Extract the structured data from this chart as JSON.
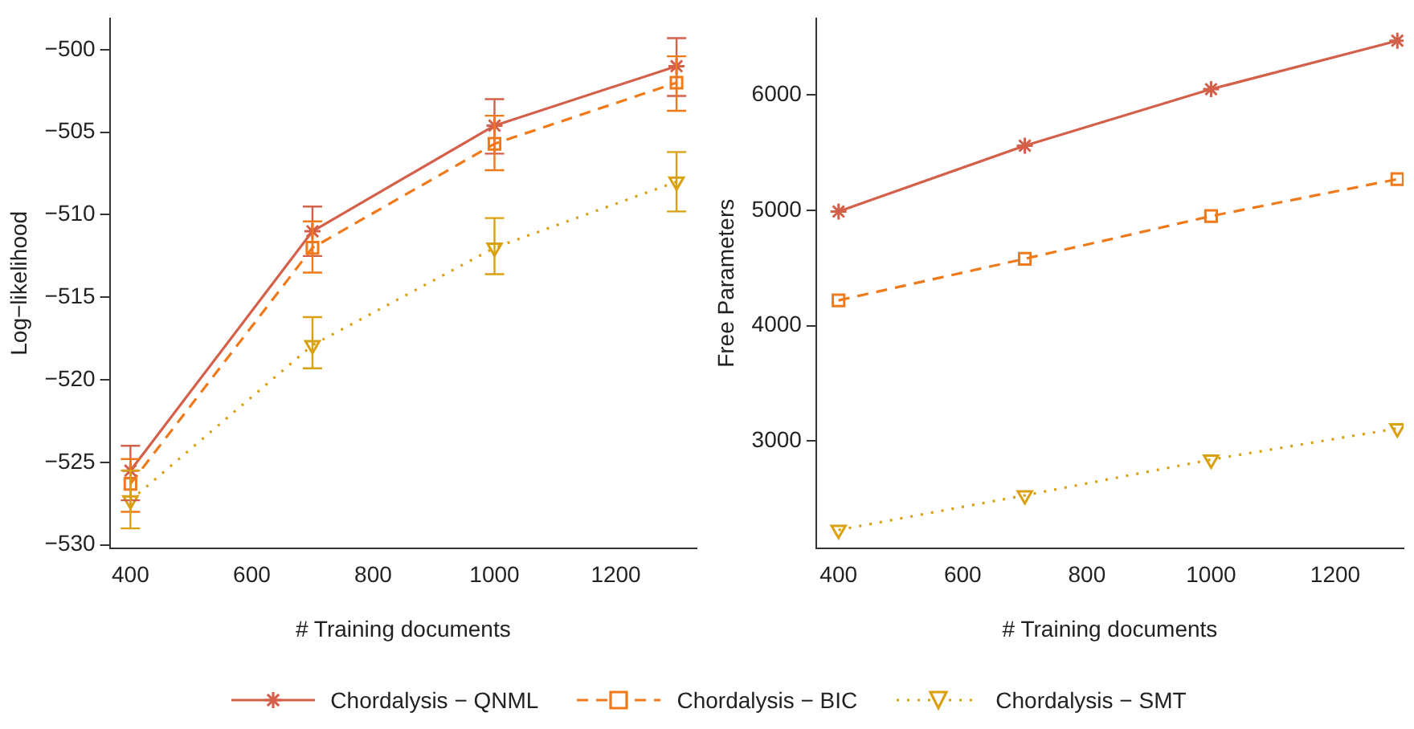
{
  "chart_data": [
    {
      "type": "line",
      "xlabel": "# Training documents",
      "ylabel": "Log−likelihood",
      "x": [
        400,
        700,
        1000,
        1300
      ],
      "xlim": [
        366,
        1333
      ],
      "xticks": [
        400,
        600,
        800,
        1000,
        1200
      ],
      "ylim": [
        -530.2,
        -498.1
      ],
      "yticks": [
        -530,
        -525,
        -520,
        -515,
        -510,
        -505,
        -500
      ],
      "grid": false,
      "legend": "bottom",
      "series": [
        {
          "name": "Chordalysis − QNML",
          "color": "#d4604a",
          "marker": "cross",
          "line_style": "solid",
          "values": [
            -525.5,
            -511,
            -504.6,
            -501
          ],
          "errors": [
            [
              -527.3,
              -524
            ],
            [
              -512.5,
              -509.5
            ],
            [
              -506.3,
              -503
            ],
            [
              -502.8,
              -499.3
            ]
          ]
        },
        {
          "name": "Chordalysis − BIC",
          "color": "#f07a1a",
          "marker": "square",
          "line_style": "dashed",
          "values": [
            -526.3,
            -512,
            -505.7,
            -502
          ],
          "errors": [
            [
              -528,
              -524.8
            ],
            [
              -513.5,
              -510.4
            ],
            [
              -507.3,
              -504
            ],
            [
              -503.7,
              -500.4
            ]
          ]
        },
        {
          "name": "Chordalysis − SMT",
          "color": "#d9a010",
          "marker": "triangle",
          "line_style": "dotted",
          "values": [
            -527.3,
            -517.9,
            -512,
            -508
          ],
          "errors": [
            [
              -529,
              -525.5
            ],
            [
              -519.3,
              -516.2
            ],
            [
              -513.6,
              -510.2
            ],
            [
              -509.8,
              -506.2
            ]
          ]
        }
      ]
    },
    {
      "type": "line",
      "xlabel": "# Training documents",
      "ylabel": "Free Parameters",
      "x": [
        400,
        700,
        1000,
        1300
      ],
      "xlim": [
        364,
        1310
      ],
      "xticks": [
        400,
        600,
        800,
        1000,
        1200
      ],
      "ylim": [
        2072,
        6664
      ],
      "yticks": [
        3000,
        4000,
        5000,
        6000
      ],
      "grid": false,
      "series": [
        {
          "color": "#d4604a",
          "marker": "cross",
          "line_style": "solid",
          "values": [
            4990,
            5560,
            6050,
            6470
          ]
        },
        {
          "color": "#f07a1a",
          "marker": "square",
          "line_style": "dashed",
          "values": [
            4220,
            4580,
            4950,
            5270
          ]
        },
        {
          "color": "#d9a010",
          "marker": "triangle",
          "line_style": "dotted",
          "values": [
            2230,
            2530,
            2840,
            3110
          ]
        }
      ]
    }
  ]
}
